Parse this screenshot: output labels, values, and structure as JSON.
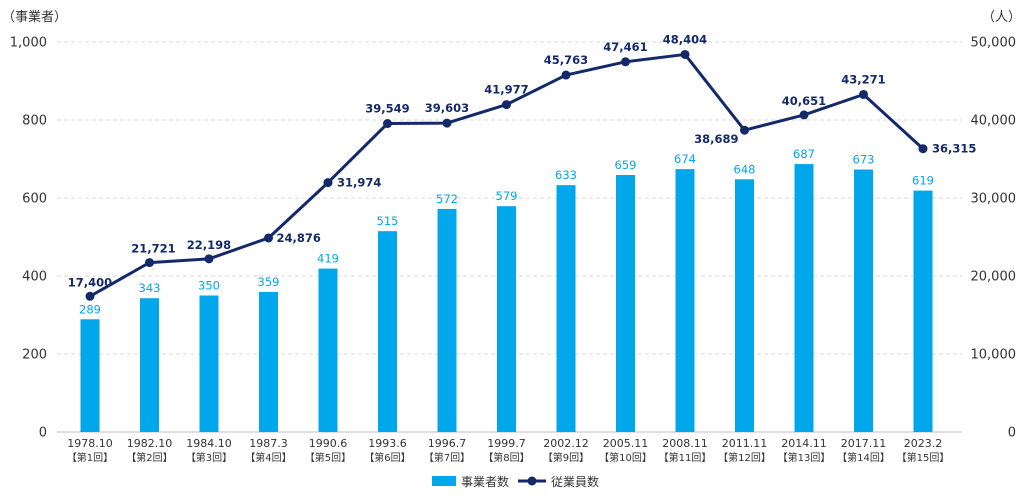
{
  "colors": {
    "bar": "#00A7EA",
    "line": "#13296A",
    "grid": "#D9D9D9",
    "axis_text": "#333333",
    "bar_label": "#00A7EA",
    "line_label": "#13296A"
  },
  "chart_data": {
    "type": "bar",
    "y_left_unit": "（事業者）",
    "y_right_unit": "（人）",
    "ylim_left": [
      0,
      1000
    ],
    "ylim_right": [
      0,
      50000
    ],
    "yticks_left": [
      "0",
      "200",
      "400",
      "600",
      "800",
      "1,000"
    ],
    "yticks_right": [
      "0",
      "10,000",
      "20,000",
      "30,000",
      "40,000",
      "50,000"
    ],
    "grid": true,
    "legend_position": "bottom-center",
    "categories": [
      {
        "date": "1978.10",
        "round": "【第1回】"
      },
      {
        "date": "1982.10",
        "round": "【第2回】"
      },
      {
        "date": "1984.10",
        "round": "【第3回】"
      },
      {
        "date": "1987.3",
        "round": "【第4回】"
      },
      {
        "date": "1990.6",
        "round": "【第5回】"
      },
      {
        "date": "1993.6",
        "round": "【第6回】"
      },
      {
        "date": "1996.7",
        "round": "【第7回】"
      },
      {
        "date": "1999.7",
        "round": "【第8回】"
      },
      {
        "date": "2002.12",
        "round": "【第9回】"
      },
      {
        "date": "2005.11",
        "round": "【第10回】"
      },
      {
        "date": "2008.11",
        "round": "【第11回】"
      },
      {
        "date": "2011.11",
        "round": "【第12回】"
      },
      {
        "date": "2014.11",
        "round": "【第13回】"
      },
      {
        "date": "2017.11",
        "round": "【第14回】"
      },
      {
        "date": "2023.2",
        "round": "【第15回】"
      }
    ],
    "series": [
      {
        "name": "事業者数",
        "type": "bar",
        "axis": "left",
        "values": [
          289,
          343,
          350,
          359,
          419,
          515,
          572,
          579,
          633,
          659,
          674,
          648,
          687,
          673,
          619
        ],
        "labels": [
          "289",
          "343",
          "350",
          "359",
          "419",
          "515",
          "572",
          "579",
          "633",
          "659",
          "674",
          "648",
          "687",
          "673",
          "619"
        ]
      },
      {
        "name": "従業員数",
        "type": "line",
        "axis": "right",
        "values": [
          17400,
          21721,
          22198,
          24876,
          31974,
          39549,
          39603,
          41977,
          45763,
          47461,
          48404,
          38689,
          40651,
          43271,
          36315
        ],
        "labels": [
          "17,400",
          "21,721",
          "22,198",
          "24,876",
          "31,974",
          "39,549",
          "39,603",
          "41,977",
          "45,763",
          "47,461",
          "48,404",
          "38,689",
          "40,651",
          "43,271",
          "36,315"
        ]
      }
    ]
  }
}
